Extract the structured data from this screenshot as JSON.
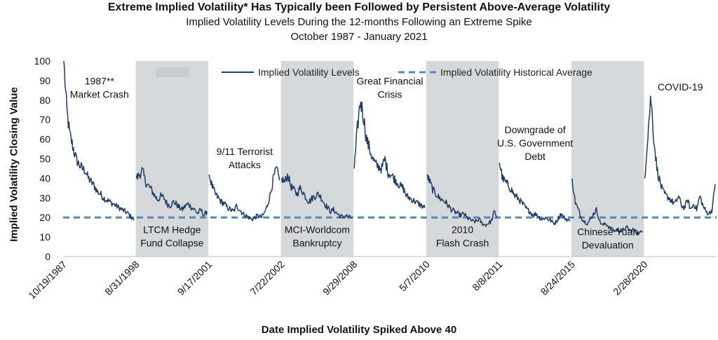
{
  "title": "Extreme Implied Volatility* Has Typically been Followed by Persistent Above-Average Volatility",
  "subtitle": "Implied Volatility Levels During the 12-months Following an Extreme Spike",
  "date_range": "October 1987 - January 2021",
  "colors": {
    "line": "#1f3d66",
    "average": "#5b87b5",
    "shade": "#d6d9dc"
  },
  "chart_data": {
    "type": "line",
    "xlabel": "Date Implied Volatility Spiked Above 40",
    "ylabel": "Implied Volatility Closing Value",
    "ylim": [
      0,
      100
    ],
    "yticks": [
      0,
      10,
      20,
      30,
      40,
      50,
      60,
      70,
      80,
      90,
      100
    ],
    "grid": false,
    "legend_position": "top",
    "categories": [
      "10/19/1987",
      "8/31/1998",
      "9/17/2001",
      "7/22/2002",
      "9/29/2008",
      "5/7/2010",
      "8/8/2011",
      "8/24/2015",
      "2/28/2020"
    ],
    "shaded_categories": [
      "8/31/1998",
      "7/22/2002",
      "5/7/2010",
      "8/24/2015"
    ],
    "series": [
      {
        "name": "Implied Volatility Levels",
        "style": "solid",
        "segments": [
          {
            "start": "10/19/1987",
            "values": [
              100,
              74,
              62,
              56,
              50,
              47,
              45,
              44,
              40,
              38,
              36,
              33,
              32,
              30,
              29,
              28,
              27,
              26,
              25,
              24,
              23,
              22,
              20,
              19
            ]
          },
          {
            "start": "8/31/1998",
            "values": [
              40,
              42,
              44,
              38,
              36,
              34,
              31,
              29,
              31,
              30,
              27,
              26,
              28,
              27,
              25,
              24,
              26,
              27,
              25,
              24,
              22,
              24,
              21,
              23
            ]
          },
          {
            "start": "9/17/2001",
            "values": [
              42,
              36,
              32,
              30,
              28,
              27,
              25,
              24,
              23,
              26,
              24,
              22,
              21,
              20,
              19,
              20,
              21,
              20,
              22,
              26,
              32,
              40,
              45,
              39
            ]
          },
          {
            "start": "7/22/2002",
            "values": [
              40,
              38,
              42,
              36,
              34,
              32,
              35,
              33,
              30,
              28,
              30,
              31,
              32,
              30,
              27,
              25,
              23,
              24,
              22,
              21,
              20,
              21,
              20,
              20
            ]
          },
          {
            "start": "9/29/2008",
            "values": [
              45,
              65,
              80,
              72,
              60,
              55,
              50,
              47,
              46,
              45,
              50,
              43,
              42,
              40,
              38,
              36,
              35,
              31,
              30,
              29,
              28,
              27,
              26,
              25
            ]
          },
          {
            "start": "5/7/2010",
            "values": [
              42,
              38,
              34,
              32,
              30,
              29,
              28,
              26,
              24,
              23,
              22,
              21,
              22,
              20,
              19,
              18,
              18,
              19,
              17,
              16,
              17,
              18,
              23,
              20
            ]
          },
          {
            "start": "8/8/2011",
            "values": [
              48,
              40,
              38,
              36,
              34,
              31,
              30,
              28,
              26,
              24,
              23,
              21,
              22,
              20,
              19,
              20,
              19,
              18,
              17,
              19,
              22,
              20,
              19,
              18
            ]
          },
          {
            "start": "8/24/2015",
            "values": [
              40,
              28,
              24,
              20,
              18,
              17,
              19,
              22,
              24,
              18,
              16,
              17,
              15,
              14,
              13,
              14,
              13,
              14,
              15,
              13,
              14,
              12,
              12,
              13
            ]
          },
          {
            "start": "2/28/2020",
            "values": [
              40,
              62,
              82,
              60,
              45,
              38,
              33,
              31,
              30,
              28,
              27,
              31,
              26,
              25,
              29,
              24,
              27,
              24,
              31,
              26,
              23,
              22,
              24,
              37
            ]
          }
        ]
      },
      {
        "name": "Implied Volatility Historical Average",
        "style": "dashed",
        "value": 20
      }
    ],
    "annotations": [
      {
        "lines": [
          "1987**",
          "Market Crash"
        ],
        "category": "10/19/1987",
        "y": 88
      },
      {
        "lines": [
          "LTCM Hedge",
          "Fund Collapse"
        ],
        "category": "8/31/1998",
        "y": 12
      },
      {
        "lines": [
          "9/11 Terrorist",
          "Attacks"
        ],
        "category": "9/17/2001",
        "y": 52
      },
      {
        "lines": [
          "MCI-Worldcom",
          "Bankruptcy"
        ],
        "category": "7/22/2002",
        "y": 12
      },
      {
        "lines": [
          "Great Financial",
          "Crisis"
        ],
        "category": "9/29/2008",
        "y": 88
      },
      {
        "lines": [
          "2010",
          "Flash Crash"
        ],
        "category": "5/7/2010",
        "y": 12
      },
      {
        "lines": [
          "Downgrade of",
          "U.S. Government",
          "Debt"
        ],
        "category": "8/8/2011",
        "y": 63
      },
      {
        "lines": [
          "Chinese Yuan",
          "Devaluation"
        ],
        "category": "8/24/2015",
        "y": 11
      },
      {
        "lines": [
          "COVID-19"
        ],
        "category": "2/28/2020",
        "y": 85
      }
    ]
  }
}
